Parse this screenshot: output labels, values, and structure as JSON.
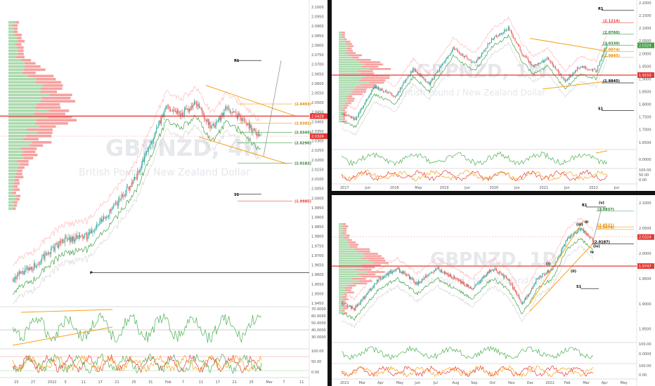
{
  "chart_data": [
    {
      "type": "candlestick",
      "timeframe": "4h",
      "symbol_short": "GBPNZD, 4h",
      "symbol_long": "British Pound / New Zealand Dollar",
      "x_tick_labels": [
        "23",
        "27",
        "2022",
        "5",
        "11",
        "17",
        "21",
        "25",
        "31",
        "Feb",
        "7",
        "11",
        "17",
        "21",
        "25",
        "Mar",
        "7",
        "11"
      ],
      "y_tick_labels": [
        "2.1000",
        "2.0950",
        "2.0900",
        "2.0850",
        "2.0800",
        "2.0750",
        "2.0700",
        "2.0650",
        "2.0600",
        "2.0550",
        "2.0500",
        "2.0450",
        "2.0400",
        "2.0350",
        "2.0300",
        "2.0250",
        "2.0200",
        "2.0150",
        "2.0100",
        "2.0050",
        "2.0000",
        "1.9950",
        "1.9900",
        "1.9850",
        "1.9800",
        "1.9750",
        "1.9700",
        "1.9650",
        "1.9600",
        "1.9550",
        "1.9500",
        "1.9450"
      ],
      "level_labels": [
        "R1",
        "(2.0493)",
        "(2.0392)",
        "(2.0345)",
        "(2.0290)",
        "(2.0182)",
        "(1.9985)",
        "S1",
        "P"
      ],
      "price_tags": [
        "2.0429",
        "2.0324"
      ],
      "oscillator_ticks": [
        "70.0000",
        "60.0000",
        "50.0000",
        "40.0000",
        "30.0000",
        "100.00",
        "50.00",
        "0.00"
      ]
    },
    {
      "type": "candlestick",
      "timeframe": "1W",
      "symbol_short": "GBPNZD, 1W",
      "symbol_long": "British Pound / New Zealand Dollar",
      "x_tick_labels": [
        "2017",
        "Jun",
        "2018",
        "May",
        "2019",
        "Jun",
        "2020",
        "Jun",
        "2021",
        "Jun",
        "2022",
        "Jun"
      ],
      "y_tick_labels": [
        "2.2000",
        "2.1500",
        "2.1000",
        "2.0500",
        "2.0000",
        "1.9500",
        "1.9000",
        "1.8500",
        "1.8000",
        "1.7500",
        "1.7000",
        "1.6500"
      ],
      "level_labels": [
        "R1",
        "(2.1214)",
        "(2.0760)",
        "(2.0330)",
        "(2.0074)",
        "(1.9845)",
        "(1.8845)",
        "S1"
      ],
      "price_tags": [
        "2.0324",
        "1.9150"
      ],
      "oscillator_ticks": [
        "0.0000",
        "100.00",
        "50.00",
        "0.00"
      ]
    },
    {
      "type": "candlestick",
      "timeframe": "1D",
      "symbol_short": "GBPNZD, 1D",
      "symbol_long": "British Pound / New Zealand Dollar",
      "wave_labels": [
        "(v)",
        "(iii)",
        "(i)",
        "(iv)",
        "(ii)",
        "iii",
        "iv"
      ],
      "x_tick_labels": [
        "2021",
        "Mar",
        "Apr",
        "May",
        "Jun",
        "Jul",
        "Aug",
        "Sep",
        "Oct",
        "Nov",
        "Dec",
        "2022",
        "Feb",
        "Mar",
        "Apr",
        "May"
      ],
      "y_tick_labels": [
        "2.1000",
        "2.0500",
        "2.0000",
        "1.9500",
        "1.9000",
        "1.8500"
      ],
      "level_labels": [
        "R1",
        "(2.0837)",
        "(2.0521)",
        "(2.0474)",
        "(2.0187)",
        "S1"
      ],
      "price_tags": [
        "2.0324",
        "1.9747"
      ],
      "oscillator_ticks": [
        "100.00",
        "0.0000",
        "100.00",
        "0.00"
      ]
    }
  ],
  "colors": {
    "up": "#26a69a",
    "down": "#ef5350",
    "fib": "#f7a21b",
    "level": "#000000",
    "redline": "#e53935",
    "green": "#4caf50"
  }
}
